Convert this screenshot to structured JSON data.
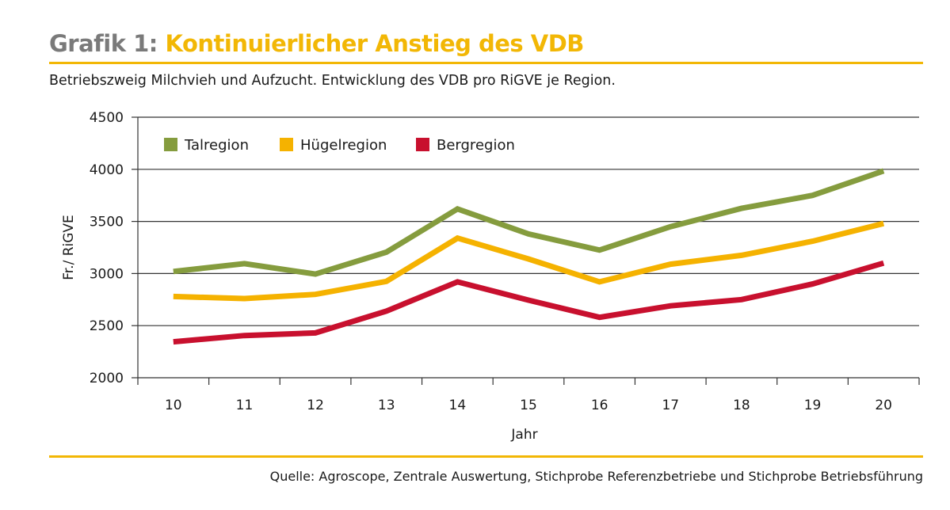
{
  "header": {
    "prefix": "Grafik 1:",
    "title": "Kontinuierlicher Anstieg des VDB",
    "subtitle": "Betriebszweig Milchvieh und Aufzucht. Entwicklung des VDB pro RiGVE je Region."
  },
  "footer": {
    "source": "Quelle: Agroscope, Zentrale Auswertung, Stichprobe Referenzbetriebe und Stichprobe Betriebsführung"
  },
  "colors": {
    "accent": "#f2b705",
    "prefix_gray": "#7a7a7a",
    "talregion": "#859c3e",
    "huegelregion": "#f5b200",
    "bergregion": "#c8102e"
  },
  "chart_data": {
    "type": "line",
    "xlabel": "Jahr",
    "ylabel": "Fr./ RiGVE",
    "categories": [
      "10",
      "11",
      "12",
      "13",
      "14",
      "15",
      "16",
      "17",
      "18",
      "19",
      "20"
    ],
    "ylim": [
      2000,
      4500
    ],
    "yticks": [
      2000,
      2500,
      3000,
      3500,
      4000,
      4500
    ],
    "grid": true,
    "legend": "top-left",
    "series": [
      {
        "name": "Talregion",
        "color": "#859c3e",
        "values": [
          3020,
          3095,
          2995,
          3205,
          3620,
          3380,
          3225,
          3450,
          3625,
          3750,
          3985
        ]
      },
      {
        "name": "Hügelregion",
        "color": "#f5b200",
        "values": [
          2780,
          2760,
          2800,
          2925,
          3340,
          3140,
          2920,
          3090,
          3175,
          3310,
          3480
        ]
      },
      {
        "name": "Bergregion",
        "color": "#c8102e",
        "values": [
          2345,
          2405,
          2430,
          2640,
          2920,
          2745,
          2580,
          2690,
          2750,
          2900,
          3100
        ]
      }
    ]
  }
}
